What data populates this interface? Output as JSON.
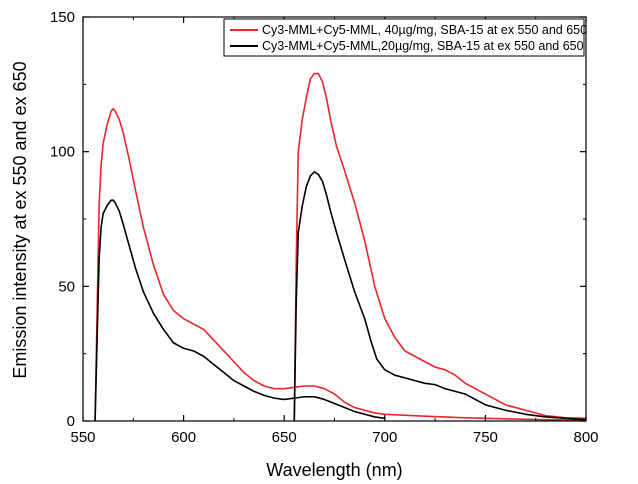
{
  "chart_data": {
    "type": "line",
    "title": "",
    "xlabel": "Wavelength (nm)",
    "ylabel": "Emission intensity at ex 550 and ex 650",
    "xlim": [
      550,
      800
    ],
    "ylim": [
      0,
      150
    ],
    "xticks": [
      550,
      600,
      650,
      700,
      750,
      800
    ],
    "yticks": [
      0,
      50,
      100,
      150
    ],
    "grid": false,
    "legend_position": "top-right",
    "series": [
      {
        "name": "Cy3-MML+Cy5-MML, 40µg/mg, SBA-15 at ex 550 and 650",
        "color": "#e8262b",
        "segments": [
          [
            [
              556,
              0
            ],
            [
              557,
              40
            ],
            [
              558,
              80
            ],
            [
              559,
              95
            ],
            [
              560,
              103
            ],
            [
              562,
              110
            ],
            [
              564,
              115
            ],
            [
              565,
              116
            ],
            [
              566,
              115
            ],
            [
              568,
              112
            ],
            [
              570,
              107
            ],
            [
              573,
              97
            ],
            [
              576,
              86
            ],
            [
              580,
              72
            ],
            [
              585,
              58
            ],
            [
              590,
              47
            ],
            [
              595,
              41
            ],
            [
              600,
              38
            ],
            [
              605,
              36
            ],
            [
              610,
              34
            ],
            [
              615,
              30
            ],
            [
              620,
              26
            ],
            [
              625,
              22
            ],
            [
              630,
              18
            ],
            [
              635,
              15
            ],
            [
              640,
              13
            ],
            [
              645,
              12
            ],
            [
              650,
              12
            ],
            [
              655,
              12.5
            ],
            [
              660,
              13
            ],
            [
              665,
              13
            ],
            [
              670,
              12
            ],
            [
              675,
              10
            ],
            [
              680,
              7
            ],
            [
              685,
              5
            ],
            [
              690,
              4
            ],
            [
              695,
              3
            ],
            [
              700,
              2.5
            ]
          ],
          [
            [
              655,
              0
            ],
            [
              656,
              60
            ],
            [
              657,
              100
            ],
            [
              659,
              112
            ],
            [
              661,
              120
            ],
            [
              663,
              127
            ],
            [
              665,
              129
            ],
            [
              667,
              129
            ],
            [
              669,
              126
            ],
            [
              671,
              120
            ],
            [
              673,
              112
            ],
            [
              676,
              102
            ],
            [
              680,
              93
            ],
            [
              685,
              81
            ],
            [
              690,
              67
            ],
            [
              695,
              50
            ],
            [
              700,
              38
            ],
            [
              705,
              31
            ],
            [
              710,
              26
            ],
            [
              715,
              24
            ],
            [
              720,
              22
            ],
            [
              725,
              20
            ],
            [
              730,
              19
            ],
            [
              735,
              17
            ],
            [
              740,
              14
            ],
            [
              745,
              12
            ],
            [
              750,
              10
            ],
            [
              760,
              6
            ],
            [
              770,
              4
            ],
            [
              780,
              2
            ],
            [
              790,
              1.2
            ],
            [
              800,
              1
            ]
          ],
          [
            [
              700,
              2.5
            ],
            [
              720,
              1.8
            ],
            [
              740,
              1.2
            ],
            [
              760,
              0.8
            ],
            [
              780,
              0.5
            ],
            [
              800,
              0.3
            ]
          ]
        ]
      },
      {
        "name": "Cy3-MML+Cy5-MML,20µg/mg, SBA-15 at ex 550 and 650",
        "color": "#000000",
        "segments": [
          [
            [
              556,
              0
            ],
            [
              557,
              30
            ],
            [
              558,
              60
            ],
            [
              559,
              72
            ],
            [
              560,
              77
            ],
            [
              562,
              80
            ],
            [
              564,
              82
            ],
            [
              565,
              82
            ],
            [
              566,
              81
            ],
            [
              568,
              78
            ],
            [
              570,
              73
            ],
            [
              573,
              65
            ],
            [
              576,
              57
            ],
            [
              580,
              48
            ],
            [
              585,
              40
            ],
            [
              590,
              34
            ],
            [
              595,
              29
            ],
            [
              600,
              27
            ],
            [
              605,
              26
            ],
            [
              610,
              24
            ],
            [
              615,
              21
            ],
            [
              620,
              18
            ],
            [
              625,
              15
            ],
            [
              630,
              13
            ],
            [
              635,
              11
            ],
            [
              640,
              9.5
            ],
            [
              645,
              8.5
            ],
            [
              650,
              8
            ],
            [
              655,
              8.5
            ],
            [
              660,
              9
            ],
            [
              665,
              9
            ],
            [
              670,
              8
            ],
            [
              675,
              6.5
            ],
            [
              680,
              5
            ],
            [
              685,
              3.5
            ],
            [
              690,
              2.5
            ],
            [
              695,
              1.5
            ],
            [
              700,
              1
            ]
          ],
          [
            [
              655,
              0
            ],
            [
              656,
              45
            ],
            [
              657,
              70
            ],
            [
              659,
              80
            ],
            [
              661,
              87
            ],
            [
              663,
              91
            ],
            [
              665,
              92.5
            ],
            [
              667,
              91.5
            ],
            [
              669,
              89
            ],
            [
              671,
              84
            ],
            [
              673,
              78
            ],
            [
              676,
              70
            ],
            [
              680,
              60
            ],
            [
              685,
              48
            ],
            [
              690,
              38
            ],
            [
              693,
              30
            ],
            [
              696,
              23
            ],
            [
              700,
              19
            ],
            [
              705,
              17
            ],
            [
              710,
              16
            ],
            [
              715,
              15
            ],
            [
              720,
              14
            ],
            [
              725,
              13.5
            ],
            [
              730,
              12
            ],
            [
              735,
              11
            ],
            [
              740,
              10
            ],
            [
              745,
              8
            ],
            [
              750,
              6
            ],
            [
              760,
              4
            ],
            [
              770,
              2.5
            ],
            [
              780,
              1.5
            ],
            [
              790,
              1
            ],
            [
              800,
              0.5
            ]
          ]
        ]
      }
    ]
  }
}
